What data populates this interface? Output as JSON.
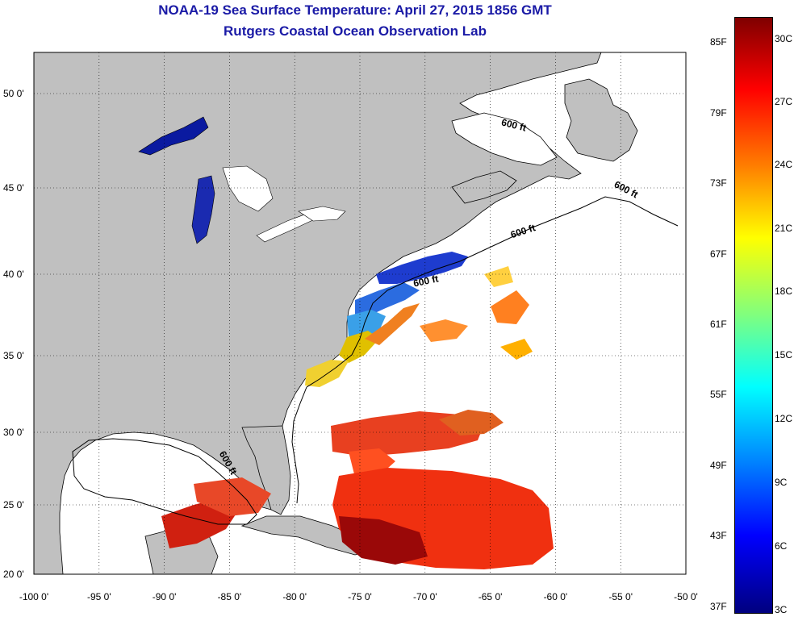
{
  "header": {
    "title": "NOAA-19 Sea Surface Temperature:  April 27, 2015 1856 GMT",
    "subtitle": "Rutgers Coastal Ocean Observation Lab"
  },
  "map": {
    "lon_labels": [
      "-100 0'",
      "-95 0'",
      "-90 0'",
      "-85 0'",
      "-80 0'",
      "-75 0'",
      "-70 0'",
      "-65 0'",
      "-60 0'",
      "-55 0'",
      "-50 0'"
    ],
    "lat_labels": [
      "50 0'",
      "45 0'",
      "40 0'",
      "35 0'",
      "30 0'",
      "25 0'",
      "20 0'"
    ],
    "isobath_label": "600 ft",
    "land_color": "#c0c0c0"
  },
  "colorbar": {
    "f_labels": [
      "85F",
      "79F",
      "73F",
      "67F",
      "61F",
      "55F",
      "49F",
      "43F",
      "37F"
    ],
    "c_labels": [
      "30C",
      "27C",
      "24C",
      "21C",
      "18C",
      "15C",
      "12C",
      "9C",
      "6C",
      "3C"
    ]
  }
}
